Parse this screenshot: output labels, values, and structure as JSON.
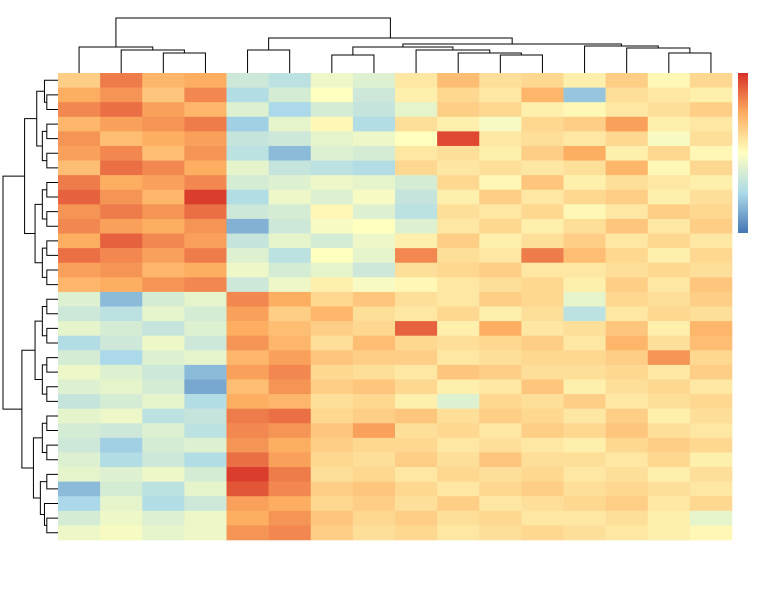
{
  "chart_data": {
    "type": "heatmap",
    "zlim": [
      -2,
      2
    ],
    "colors": [
      "#4575b4",
      "#abd9e9",
      "#ffffbf",
      "#fdae61",
      "#d73027"
    ],
    "values": [
      [
        0.6,
        1.4,
        0.9,
        1.0,
        -0.6,
        -0.8,
        -0.2,
        -0.4,
        0.3,
        0.8,
        0.4,
        0.5,
        0.2,
        0.6,
        0.1,
        0.5
      ],
      [
        1.0,
        1.2,
        0.7,
        1.3,
        -0.9,
        -0.5,
        0.0,
        -0.6,
        0.2,
        0.5,
        0.3,
        0.9,
        -1.2,
        0.4,
        0.3,
        0.2
      ],
      [
        1.3,
        1.5,
        1.1,
        0.9,
        -0.4,
        -1.0,
        -0.5,
        -0.7,
        -0.3,
        0.6,
        0.5,
        0.2,
        0.1,
        0.3,
        0.4,
        0.6
      ],
      [
        0.9,
        1.1,
        1.2,
        1.4,
        -1.1,
        -0.3,
        0.1,
        -0.9,
        0.4,
        0.2,
        -0.1,
        0.5,
        0.6,
        1.1,
        0.2,
        0.3
      ],
      [
        1.2,
        0.8,
        1.0,
        1.1,
        -0.7,
        -0.6,
        -0.3,
        -0.2,
        0.0,
        1.8,
        0.3,
        0.4,
        0.3,
        0.5,
        -0.1,
        0.4
      ],
      [
        1.1,
        1.3,
        0.8,
        1.2,
        -0.8,
        -1.3,
        -0.4,
        -0.5,
        0.3,
        0.4,
        0.2,
        0.6,
        1.0,
        0.2,
        0.5,
        0.1
      ],
      [
        0.8,
        1.5,
        1.3,
        1.0,
        -0.3,
        -0.7,
        -0.8,
        -0.9,
        0.5,
        0.3,
        0.4,
        0.3,
        0.4,
        0.9,
        0.1,
        0.5
      ],
      [
        1.4,
        1.0,
        1.1,
        1.3,
        -0.5,
        -0.4,
        -0.2,
        -0.3,
        -0.5,
        0.5,
        0.1,
        0.7,
        0.2,
        0.4,
        0.3,
        0.2
      ],
      [
        1.6,
        1.2,
        0.9,
        1.9,
        -0.9,
        -0.2,
        -0.4,
        -0.1,
        -0.7,
        0.2,
        0.6,
        0.3,
        0.5,
        0.6,
        0.2,
        0.4
      ],
      [
        1.2,
        1.4,
        1.2,
        1.5,
        -0.6,
        -0.5,
        0.1,
        -0.4,
        -0.8,
        0.4,
        0.3,
        0.5,
        0.1,
        0.3,
        0.6,
        0.5
      ],
      [
        1.3,
        1.1,
        1.0,
        1.2,
        -1.4,
        -0.6,
        -0.1,
        0.0,
        -0.4,
        0.3,
        0.5,
        0.2,
        0.4,
        0.7,
        0.3,
        0.6
      ],
      [
        1.0,
        1.6,
        1.3,
        1.1,
        -0.7,
        -0.3,
        -0.5,
        -0.2,
        0.2,
        0.6,
        0.2,
        0.4,
        0.6,
        0.3,
        0.5,
        0.3
      ],
      [
        1.5,
        1.3,
        1.1,
        1.4,
        -0.4,
        -0.8,
        0.0,
        -0.3,
        1.3,
        0.4,
        0.3,
        1.4,
        0.8,
        0.5,
        0.2,
        0.5
      ],
      [
        1.1,
        1.2,
        0.9,
        1.0,
        -0.2,
        -0.5,
        -0.3,
        -0.6,
        0.4,
        0.5,
        0.6,
        0.3,
        0.3,
        0.4,
        0.5,
        0.4
      ],
      [
        0.9,
        1.0,
        1.2,
        1.3,
        -0.6,
        -0.2,
        0.2,
        -0.1,
        0.1,
        0.3,
        0.4,
        0.5,
        0.2,
        0.6,
        0.3,
        0.7
      ],
      [
        -0.4,
        -1.3,
        -0.5,
        -0.3,
        1.3,
        1.0,
        0.5,
        0.7,
        0.4,
        0.3,
        0.6,
        0.5,
        -0.3,
        0.5,
        0.4,
        0.6
      ],
      [
        -0.6,
        -0.8,
        -0.3,
        -0.5,
        1.1,
        0.6,
        0.9,
        0.4,
        0.3,
        0.5,
        0.2,
        0.4,
        -0.8,
        0.3,
        0.5,
        0.4
      ],
      [
        -0.3,
        -0.5,
        -0.7,
        -0.4,
        1.0,
        0.8,
        0.6,
        0.5,
        1.6,
        0.2,
        1.0,
        0.3,
        0.4,
        0.7,
        0.2,
        0.9
      ],
      [
        -0.9,
        -0.6,
        -0.2,
        -0.6,
        1.2,
        0.9,
        0.4,
        0.8,
        0.5,
        0.4,
        0.5,
        0.6,
        0.3,
        0.9,
        0.4,
        0.8
      ],
      [
        -0.5,
        -1.0,
        -0.4,
        -0.3,
        0.9,
        1.1,
        0.7,
        0.6,
        0.6,
        0.3,
        0.4,
        0.5,
        0.5,
        0.6,
        1.2,
        0.5
      ],
      [
        -0.2,
        -0.4,
        -0.6,
        -1.3,
        1.1,
        1.3,
        0.5,
        0.4,
        0.3,
        0.7,
        0.6,
        0.4,
        0.4,
        0.5,
        0.3,
        0.6
      ],
      [
        -0.4,
        -0.3,
        -0.5,
        -1.5,
        0.8,
        1.2,
        0.6,
        0.7,
        0.5,
        0.2,
        0.3,
        0.7,
        0.2,
        0.4,
        0.5,
        0.3
      ],
      [
        -0.7,
        -0.5,
        -0.3,
        -0.9,
        1.0,
        0.9,
        0.4,
        0.5,
        0.2,
        -0.4,
        0.5,
        0.4,
        0.6,
        0.3,
        0.4,
        0.5
      ],
      [
        -0.3,
        -0.2,
        -0.8,
        -0.7,
        1.4,
        1.5,
        0.5,
        0.6,
        0.7,
        0.4,
        0.6,
        0.5,
        0.3,
        0.6,
        0.2,
        0.4
      ],
      [
        -0.5,
        -0.6,
        -0.4,
        -0.8,
        1.3,
        1.2,
        0.7,
        1.1,
        0.4,
        0.5,
        0.3,
        0.6,
        0.5,
        0.7,
        0.4,
        0.3
      ],
      [
        -0.6,
        -1.1,
        -0.5,
        -0.4,
        1.2,
        1.0,
        0.6,
        0.5,
        0.5,
        0.3,
        0.4,
        0.3,
        0.2,
        0.5,
        0.6,
        0.5
      ],
      [
        -0.4,
        -0.9,
        -0.6,
        -0.9,
        1.5,
        1.1,
        0.5,
        0.4,
        0.6,
        0.4,
        0.7,
        0.4,
        0.4,
        0.3,
        0.5,
        0.2
      ],
      [
        -0.3,
        -0.4,
        -0.2,
        -0.5,
        1.9,
        1.4,
        0.4,
        0.5,
        0.3,
        0.5,
        0.4,
        0.5,
        0.3,
        0.4,
        0.2,
        0.4
      ],
      [
        -1.3,
        -0.5,
        -0.8,
        -0.3,
        1.7,
        1.3,
        0.6,
        0.7,
        0.5,
        0.3,
        0.5,
        0.6,
        0.4,
        0.5,
        0.4,
        0.3
      ],
      [
        -1.0,
        -0.3,
        -0.9,
        -0.6,
        1.1,
        1.0,
        0.5,
        0.6,
        0.4,
        0.6,
        0.3,
        0.4,
        0.5,
        0.6,
        0.3,
        0.5
      ],
      [
        -0.5,
        -0.2,
        -0.4,
        -0.2,
        1.0,
        1.2,
        0.7,
        0.5,
        0.6,
        0.4,
        0.5,
        0.3,
        0.3,
        0.4,
        0.2,
        -0.3
      ],
      [
        -0.2,
        -0.1,
        -0.3,
        -0.2,
        1.2,
        1.3,
        0.6,
        0.4,
        0.5,
        0.3,
        0.4,
        0.5,
        0.4,
        0.3,
        0.2,
        0.1
      ]
    ]
  }
}
